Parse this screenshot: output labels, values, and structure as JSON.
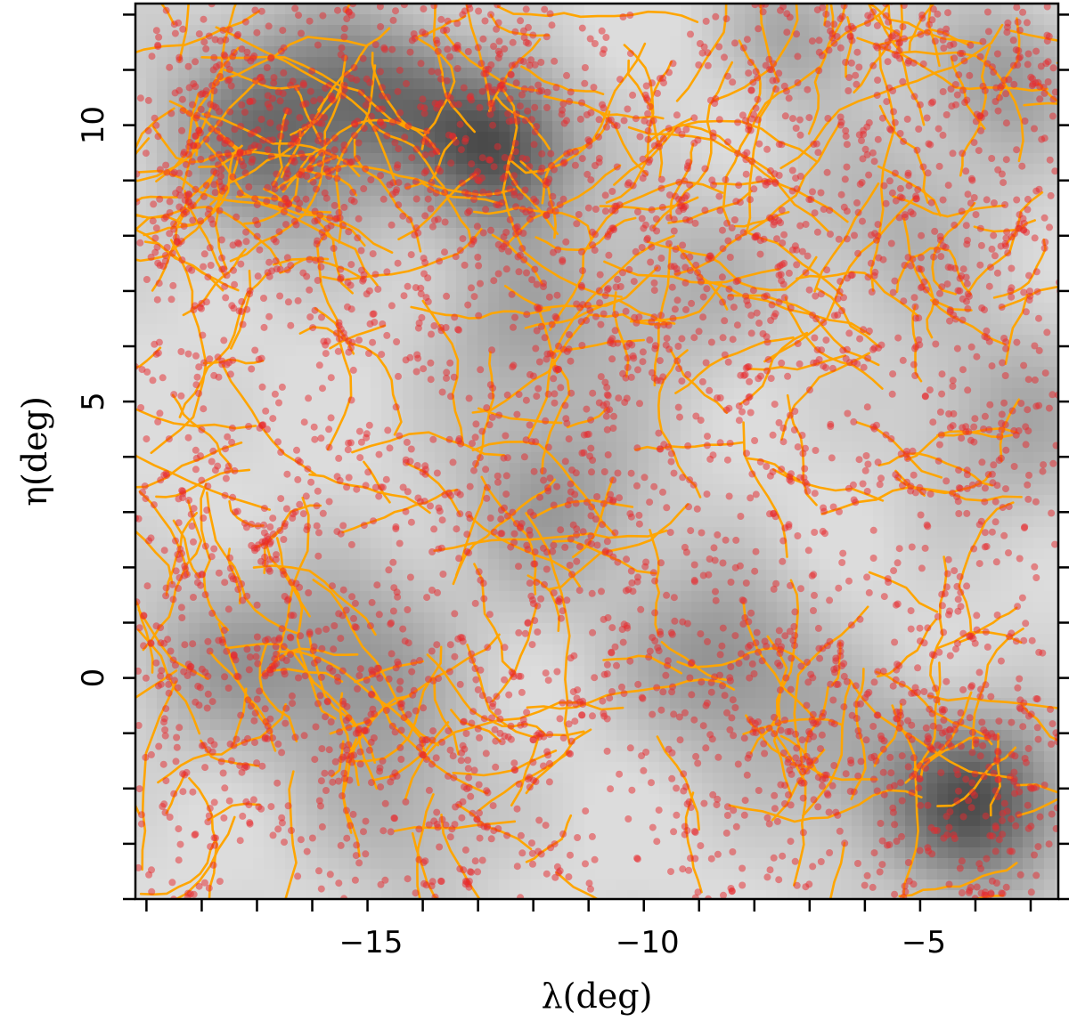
{
  "chart_data": {
    "type": "scatter",
    "title": "",
    "xlabel": "λ(deg)",
    "ylabel": "η(deg)",
    "xlim": [
      -19.2,
      -2.5
    ],
    "ylim": [
      -4,
      12.2
    ],
    "xticks": [
      -15,
      -10,
      -5
    ],
    "xtick_labels": [
      "−15",
      "−10",
      "−5"
    ],
    "yticks": [
      0,
      5,
      10
    ],
    "ytick_labels": [
      "0",
      "5",
      "10"
    ],
    "grid": false,
    "legend": "none",
    "colors": {
      "points": "#e8282b",
      "filaments": "#ffa500",
      "background_low": "#dcdcdc",
      "background_high": "#303030"
    },
    "density_peaks": [
      {
        "x": -12.6,
        "y": 9.6,
        "strength": 1.0,
        "sigma": 1.0
      },
      {
        "x": -16.6,
        "y": 9.9,
        "strength": 0.8,
        "sigma": 1.4
      },
      {
        "x": -14.5,
        "y": 10.7,
        "strength": 0.5,
        "sigma": 1.0
      },
      {
        "x": -3.9,
        "y": -2.3,
        "strength": 0.95,
        "sigma": 1.1
      },
      {
        "x": -8.6,
        "y": 0.3,
        "strength": 0.55,
        "sigma": 1.2
      },
      {
        "x": -15.3,
        "y": 0.2,
        "strength": 0.5,
        "sigma": 1.3
      },
      {
        "x": -11.6,
        "y": 3.2,
        "strength": 0.45,
        "sigma": 1.3
      },
      {
        "x": -3.4,
        "y": 10.9,
        "strength": 0.45,
        "sigma": 1.0
      },
      {
        "x": -7.2,
        "y": 11.6,
        "strength": 0.4,
        "sigma": 0.9
      },
      {
        "x": -3.3,
        "y": 4.6,
        "strength": 0.35,
        "sigma": 1.4
      },
      {
        "x": -17.8,
        "y": 0.3,
        "strength": 0.35,
        "sigma": 1.2
      },
      {
        "x": -5.4,
        "y": 8.3,
        "strength": 0.3,
        "sigma": 1.3
      },
      {
        "x": -12.3,
        "y": 6.4,
        "strength": 0.35,
        "sigma": 1.2
      },
      {
        "x": -9.3,
        "y": 7.1,
        "strength": 0.3,
        "sigma": 1.3
      },
      {
        "x": -6.2,
        "y": -1.6,
        "strength": 0.3,
        "sigma": 1.3
      },
      {
        "x": -14.2,
        "y": -2.5,
        "strength": 0.3,
        "sigma": 1.2
      }
    ],
    "galaxy_count": 4200,
    "filament_count": 330,
    "seed": 20240517
  }
}
